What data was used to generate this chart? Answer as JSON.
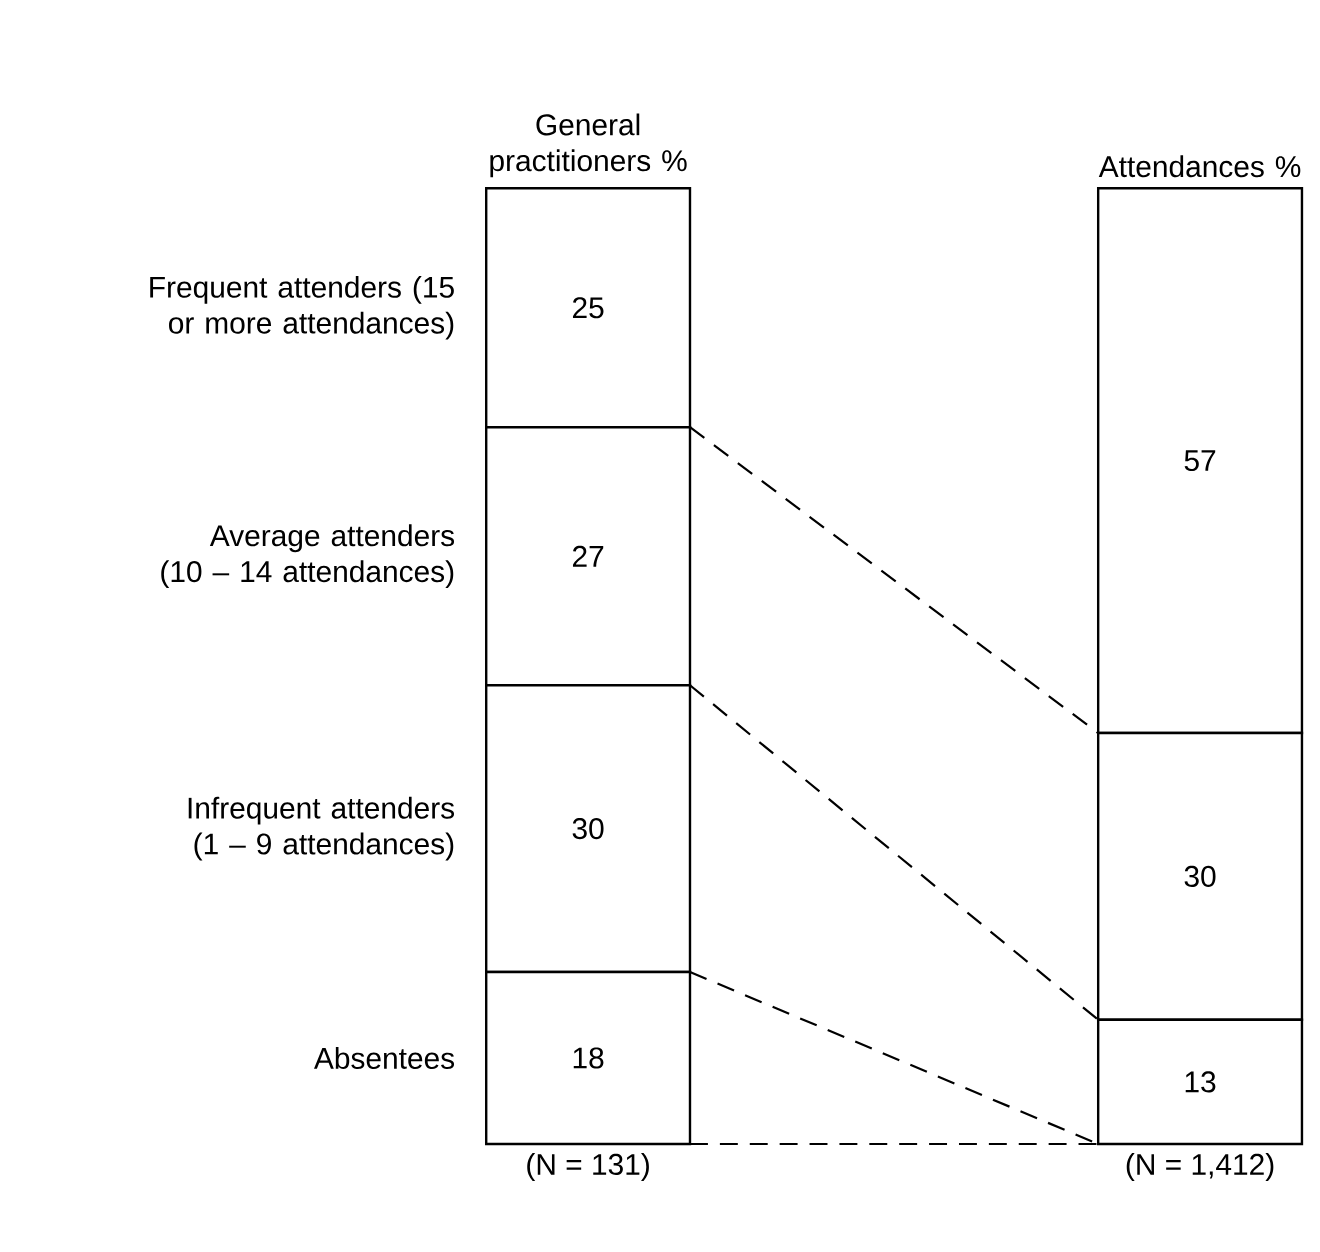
{
  "chart_data": {
    "type": "bar",
    "stacked": true,
    "categories": [
      "General practitioners %",
      "Attendances %"
    ],
    "series": [
      {
        "name": "Absentees",
        "color": "#ffffff",
        "values": [
          18,
          0
        ],
        "value_labels": [
          "18",
          null
        ]
      },
      {
        "name": "Infrequent attenders (1 – 9 attendances)",
        "color": "#ffffff",
        "values": [
          30,
          13
        ],
        "value_labels": [
          "30",
          "13"
        ]
      },
      {
        "name": "Average attenders (10 – 14 attendances)",
        "color": "#ffffff",
        "values": [
          27,
          30
        ],
        "value_labels": [
          "27",
          "30"
        ]
      },
      {
        "name": "Frequent attenders (15 or more attendances)",
        "color": "#ffffff",
        "values": [
          25,
          57
        ],
        "value_labels": [
          "25",
          "57"
        ]
      }
    ],
    "annotations": [
      "(N = 131)",
      "(N = 1,412)"
    ]
  }
}
